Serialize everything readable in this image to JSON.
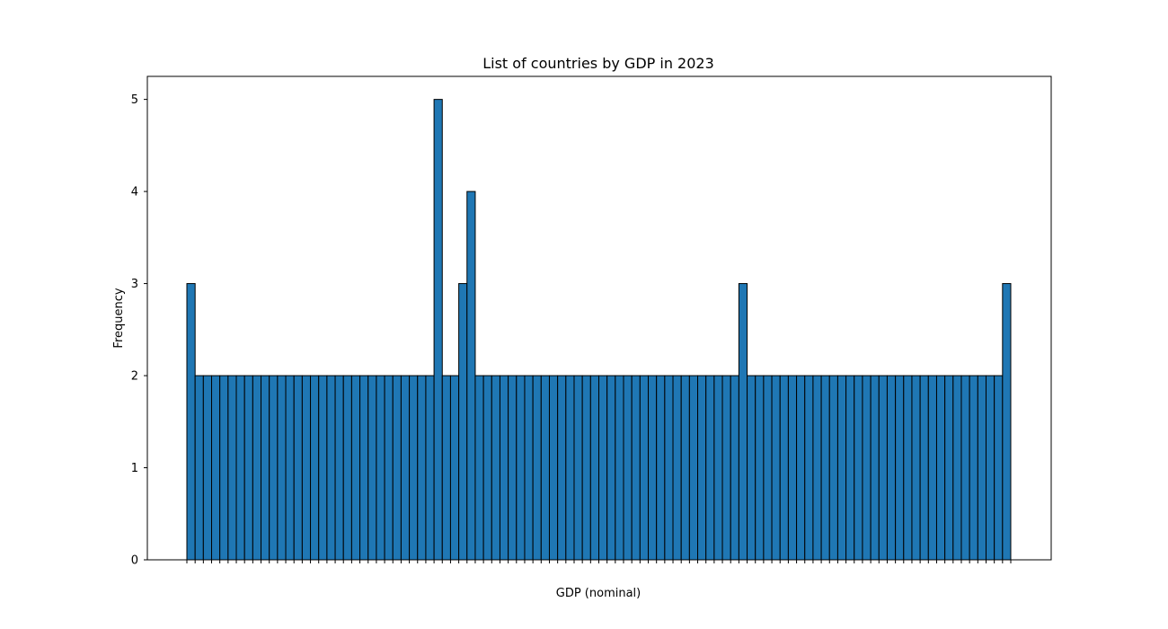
{
  "chart_data": {
    "type": "bar",
    "title": "List of countries by GDP in 2023",
    "xlabel": "GDP (nominal)",
    "ylabel": "Frequency",
    "ylim": [
      0,
      5.25
    ],
    "yticks": [
      0,
      1,
      2,
      3,
      4,
      5
    ],
    "grid": false,
    "legend": "none",
    "colors": {
      "bar_fill": "#1f77b4",
      "bar_edge": "#000000",
      "axis": "#000000",
      "background": "#ffffff"
    },
    "values": [
      3,
      2,
      2,
      2,
      2,
      2,
      2,
      2,
      2,
      2,
      2,
      2,
      2,
      2,
      2,
      2,
      2,
      2,
      2,
      2,
      2,
      2,
      2,
      2,
      2,
      2,
      2,
      2,
      2,
      2,
      5,
      2,
      2,
      3,
      4,
      2,
      2,
      2,
      2,
      2,
      2,
      2,
      2,
      2,
      2,
      2,
      2,
      2,
      2,
      2,
      2,
      2,
      2,
      2,
      2,
      2,
      2,
      2,
      2,
      2,
      2,
      2,
      2,
      2,
      2,
      2,
      2,
      3,
      2,
      2,
      2,
      2,
      2,
      2,
      2,
      2,
      2,
      2,
      2,
      2,
      2,
      2,
      2,
      2,
      2,
      2,
      2,
      2,
      2,
      2,
      2,
      2,
      2,
      2,
      2,
      2,
      2,
      2,
      2,
      3
    ]
  }
}
